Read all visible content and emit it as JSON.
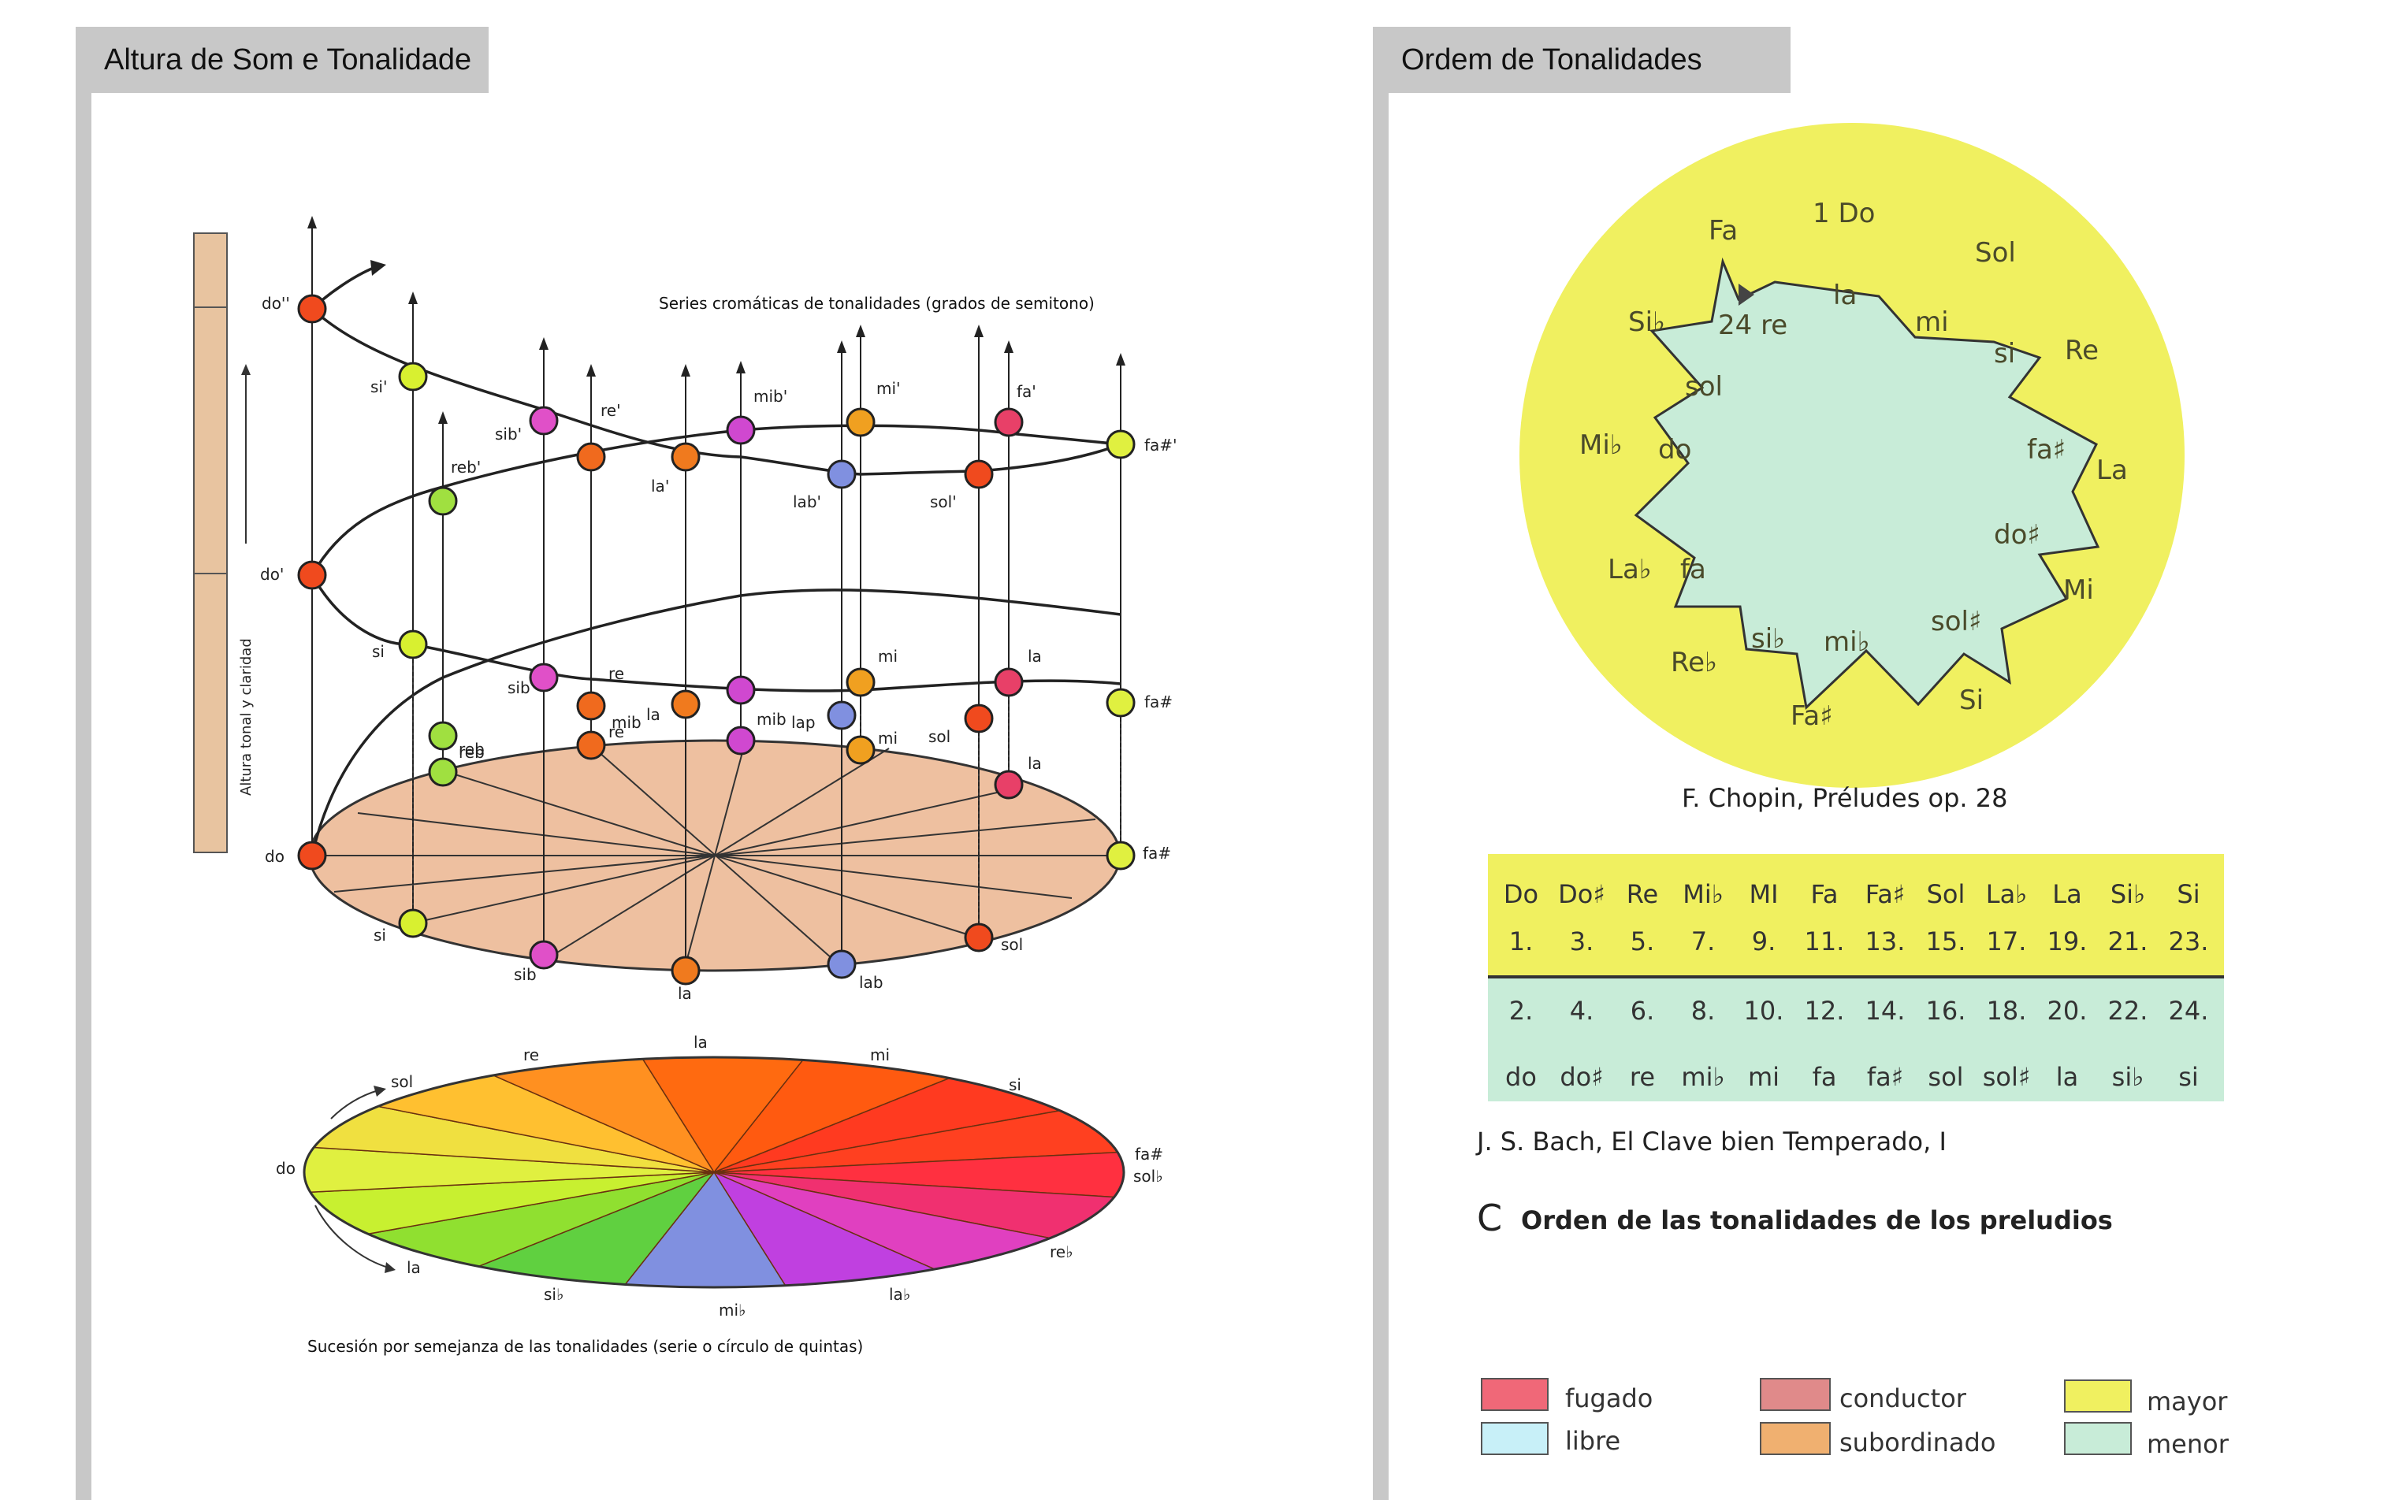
{
  "panels": {
    "left_title": "Altura de Som e Tonalidade",
    "right_title": "Ordem de Tonalidades"
  },
  "helix": {
    "top_caption": "Series cromáticas de tonalidades (grados de semitono)",
    "side_label": "Altura tonal y claridad",
    "upper_labels": [
      "do''",
      "si'",
      "sib'",
      "re'",
      "mib'",
      "mi'",
      "fa'",
      "fa#'",
      "reb'",
      "la'",
      "lab'",
      "sol'",
      "do'"
    ],
    "middle_labels": [
      "si",
      "sib",
      "re",
      "mib",
      "mi",
      "la",
      "fa#",
      "reb",
      "la",
      "mib",
      "lap",
      "sol"
    ],
    "lower_labels": [
      "reb",
      "re",
      "mi",
      "la",
      "do",
      "fa#",
      "si",
      "sib",
      "la",
      "lab",
      "sol"
    ],
    "colors": {
      "do": "#f04a1e",
      "si": "#d8f030",
      "sib": "#e050c8",
      "re": "#f06a1e",
      "la": "#f07a1e",
      "mib": "#d048d0",
      "mi": "#f0a020",
      "lab": "#8090e0",
      "fa": "#e84068",
      "sol": "#f04a1e",
      "fa#": "#e0f040",
      "reb": "#a0e040",
      "disc": "#eec0a0"
    }
  },
  "fifths": {
    "caption": "Sucesión por semejanza de las tonalidades (serie o círculo de quintas)",
    "labels": [
      "la",
      "re",
      "mi",
      "sol",
      "si",
      "do",
      "fa#",
      "sol♭",
      "la",
      "re♭",
      "si♭",
      "mi♭",
      "la♭"
    ],
    "wedge_colors": [
      "#ff6a10",
      "#ff5a10",
      "#ff3a20",
      "#ff4020",
      "#ff3040",
      "#f03070",
      "#e040c0",
      "#c040e0",
      "#8090e0",
      "#60d040",
      "#90e030",
      "#c8f030",
      "#e0f040",
      "#f0e040",
      "#ffc030",
      "#ff9020"
    ]
  },
  "chopin": {
    "caption": "F. Chopin, Préludes op. 28",
    "bg_color": "#f0f060",
    "star_color": "#c8ecd8",
    "major": [
      "1 Do",
      "Sol",
      "Re",
      "La",
      "Mi",
      "Si",
      "Fa♯",
      "Re♭",
      "La♭",
      "Mi♭",
      "Si♭",
      "Fa"
    ],
    "minor": [
      "la",
      "mi",
      "si",
      "fa♯",
      "do♯",
      "sol♯",
      "mi♭",
      "si♭",
      "fa",
      "do",
      "sol",
      "24 re"
    ]
  },
  "bach": {
    "major_names": [
      "Do",
      "Do♯",
      "Re",
      "Mi♭",
      "MI",
      "Fa",
      "Fa♯",
      "Sol",
      "La♭",
      "La",
      "Si♭",
      "Si"
    ],
    "major_nums": [
      "1.",
      "3.",
      "5.",
      "7.",
      "9.",
      "11.",
      "13.",
      "15.",
      "17.",
      "19.",
      "21.",
      "23."
    ],
    "minor_nums": [
      "2.",
      "4.",
      "6.",
      "8.",
      "10.",
      "12.",
      "14.",
      "16.",
      "18.",
      "20.",
      "22.",
      "24."
    ],
    "minor_names": [
      "do",
      "do♯",
      "re",
      "mi♭",
      "mi",
      "fa",
      "fa♯",
      "sol",
      "sol♯",
      "la",
      "si♭",
      "si"
    ],
    "major_bg": "#f0f060",
    "minor_bg": "#c8ecd8",
    "caption": "J. S. Bach, El Clave bien Temperado, I",
    "section_letter": "C",
    "section_title": "Orden de las tonalidades de los preludios"
  },
  "legend": {
    "items": [
      {
        "label": "fugado",
        "color": "#f06878"
      },
      {
        "label": "libre",
        "color": "#c8f0f8"
      },
      {
        "label": "conductor",
        "color": "#e08a8a"
      },
      {
        "label": "subordinado",
        "color": "#f0b070"
      },
      {
        "label": "mayor",
        "color": "#f0f060"
      },
      {
        "label": "menor",
        "color": "#c8ecd8"
      }
    ]
  }
}
